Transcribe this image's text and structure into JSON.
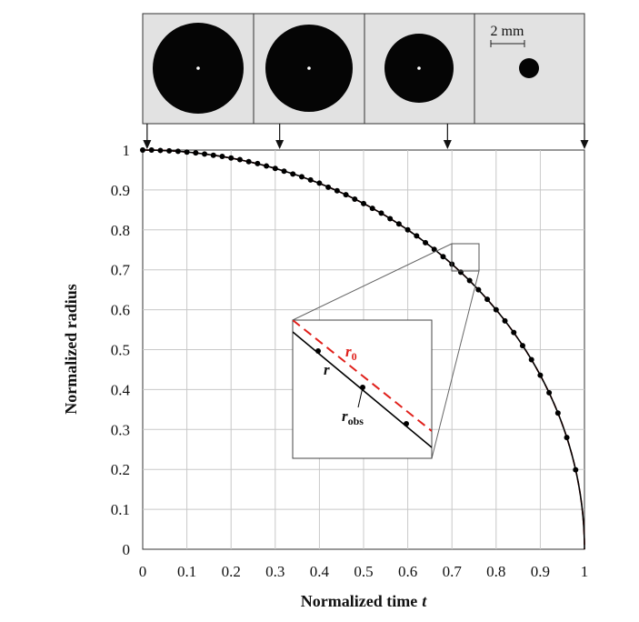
{
  "chart_data": {
    "type": "line",
    "title": "",
    "xlabel": "Normalized time",
    "xlabel_var": "t",
    "ylabel": "Normalized radius",
    "xlim": [
      0,
      1
    ],
    "ylim": [
      0,
      1
    ],
    "x_ticks": [
      "0",
      "0.1",
      "0.2",
      "0.3",
      "0.4",
      "0.5",
      "0.6",
      "0.7",
      "0.8",
      "0.9",
      "1"
    ],
    "y_ticks": [
      "0",
      "0.1",
      "0.2",
      "0.3",
      "0.4",
      "0.5",
      "0.6",
      "0.7",
      "0.8",
      "0.9",
      "1"
    ],
    "grid": true,
    "series": [
      {
        "name": "r",
        "style": "solid",
        "color": "#000000",
        "model": "sqrt(1 - t^2)"
      },
      {
        "name": "r0",
        "style": "dashed",
        "color": "#e0201b",
        "model": "sqrt(1 - t^2)"
      },
      {
        "name": "robs",
        "style": "points",
        "color": "#000000",
        "x": [
          0.0,
          0.02,
          0.04,
          0.06,
          0.08,
          0.1,
          0.12,
          0.14,
          0.16,
          0.18,
          0.2,
          0.22,
          0.24,
          0.26,
          0.28,
          0.3,
          0.32,
          0.34,
          0.36,
          0.38,
          0.4,
          0.42,
          0.44,
          0.46,
          0.48,
          0.5,
          0.52,
          0.54,
          0.56,
          0.58,
          0.6,
          0.62,
          0.64,
          0.66,
          0.68,
          0.7,
          0.72,
          0.74,
          0.76,
          0.78,
          0.8,
          0.82,
          0.84,
          0.86,
          0.88,
          0.9,
          0.92,
          0.94,
          0.96,
          0.98
        ],
        "y": [
          1.0,
          1.0,
          0.999,
          0.998,
          0.997,
          0.995,
          0.993,
          0.99,
          0.987,
          0.984,
          0.98,
          0.976,
          0.971,
          0.966,
          0.96,
          0.954,
          0.947,
          0.94,
          0.933,
          0.925,
          0.917,
          0.907,
          0.898,
          0.888,
          0.877,
          0.866,
          0.854,
          0.842,
          0.828,
          0.815,
          0.8,
          0.785,
          0.768,
          0.751,
          0.733,
          0.714,
          0.694,
          0.673,
          0.65,
          0.626,
          0.6,
          0.572,
          0.543,
          0.51,
          0.475,
          0.436,
          0.392,
          0.341,
          0.28,
          0.199
        ]
      }
    ],
    "inset": {
      "labels": {
        "r": "r",
        "r0_main": "r",
        "r0_sub": "0",
        "robs_main": "r",
        "robs_sub": "obs"
      },
      "zoom_x": [
        0.69,
        0.75
      ],
      "zoom_y": [
        0.7,
        0.77
      ]
    },
    "snapshots": {
      "markers_t": [
        0.01,
        0.31,
        0.69,
        1.0
      ],
      "drop_radius_rel": [
        1.0,
        0.96,
        0.76,
        0.22
      ],
      "scale_bar_label": "2 mm"
    }
  }
}
